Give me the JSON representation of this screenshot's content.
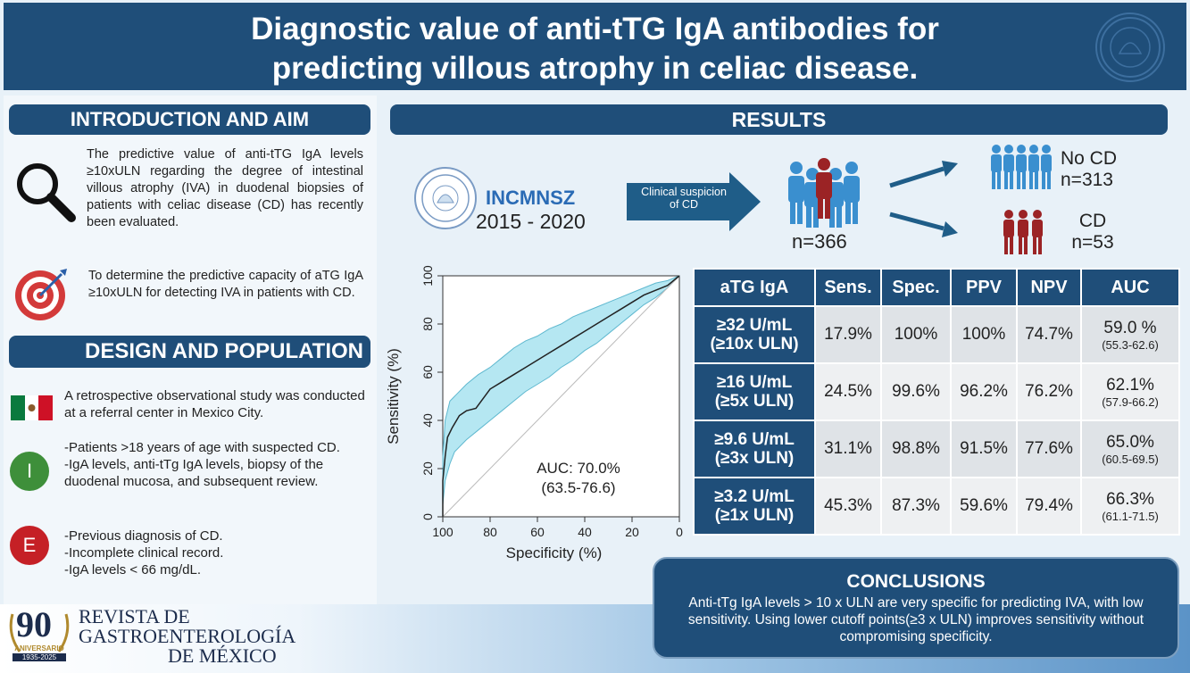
{
  "header": {
    "title_line1": "Diagnostic value of anti-tTG IgA antibodies for",
    "title_line2": "predicting villous atrophy in celiac disease.",
    "logo_icon": "university-seal-icon"
  },
  "intro": {
    "heading": "INTRODUCTION AND AIM",
    "text1": "The predictive value of anti-tTG IgA levels ≥10xULN regarding the degree of intestinal villous atrophy (IVA) in duodenal biopsies of patients with celiac disease (CD) has recently been evaluated.",
    "text2": "To determine the predictive capacity of aTG IgA ≥10xULN for detecting IVA in patients with CD."
  },
  "design": {
    "heading": "DESIGN AND POPULATION",
    "text1": "A retrospective observational study was conducted at a referral center in Mexico City.",
    "inclusion_letter": "I",
    "inclusion_line1": "-Patients >18 years of age with suspected CD.",
    "inclusion_line2": "-IgA levels, anti-tTg IgA levels, biopsy of the duodenal mucosa, and subsequent review.",
    "exclusion_letter": "E",
    "exclusion_line1": "-Previous diagnosis of CD.",
    "exclusion_line2": "-Incomplete clinical record.",
    "exclusion_line3": "-IgA levels < 66 mg/dL."
  },
  "results": {
    "heading": "RESULTS",
    "institution": "INCMNSZ",
    "years": "2015 - 2020",
    "arrow_label": "Clinical suspicion of CD",
    "total": "n=366",
    "no_cd_label": "No CD",
    "no_cd_n": "n=313",
    "cd_label": "CD",
    "cd_n": "n=53"
  },
  "chart_data": {
    "type": "line",
    "xlabel": "Specificity (%)",
    "ylabel": "Sensitivity (%)",
    "xlim": [
      100,
      0
    ],
    "ylim": [
      0,
      100
    ],
    "x_ticks": [
      100,
      80,
      60,
      40,
      20,
      0
    ],
    "y_ticks": [
      0,
      20,
      40,
      60,
      80,
      100
    ],
    "annotation_line1": "AUC: 70.0%",
    "annotation_line2": "(63.5-76.6)",
    "roc": [
      [
        100,
        0
      ],
      [
        100,
        15
      ],
      [
        99,
        25
      ],
      [
        98,
        33
      ],
      [
        96,
        37
      ],
      [
        93,
        42
      ],
      [
        90,
        44
      ],
      [
        86,
        45
      ],
      [
        83,
        49
      ],
      [
        80,
        53
      ],
      [
        75,
        56
      ],
      [
        70,
        59
      ],
      [
        65,
        62
      ],
      [
        60,
        65
      ],
      [
        55,
        68
      ],
      [
        50,
        71
      ],
      [
        45,
        74
      ],
      [
        40,
        77
      ],
      [
        35,
        80
      ],
      [
        30,
        83
      ],
      [
        25,
        86
      ],
      [
        20,
        89
      ],
      [
        15,
        92
      ],
      [
        10,
        94
      ],
      [
        5,
        96
      ],
      [
        0,
        100
      ]
    ],
    "ci_upper": [
      [
        100,
        0
      ],
      [
        100,
        25
      ],
      [
        99,
        40
      ],
      [
        97,
        48
      ],
      [
        94,
        51
      ],
      [
        90,
        55
      ],
      [
        85,
        59
      ],
      [
        80,
        62
      ],
      [
        75,
        66
      ],
      [
        70,
        70
      ],
      [
        65,
        73
      ],
      [
        60,
        75
      ],
      [
        55,
        78
      ],
      [
        50,
        80
      ],
      [
        45,
        83
      ],
      [
        40,
        85
      ],
      [
        35,
        87
      ],
      [
        30,
        89
      ],
      [
        25,
        91
      ],
      [
        20,
        93
      ],
      [
        15,
        95
      ],
      [
        10,
        97
      ],
      [
        5,
        98
      ],
      [
        0,
        100
      ]
    ],
    "ci_lower": [
      [
        100,
        0
      ],
      [
        100,
        5
      ],
      [
        99,
        15
      ],
      [
        97,
        22
      ],
      [
        95,
        27
      ],
      [
        90,
        32
      ],
      [
        85,
        36
      ],
      [
        80,
        40
      ],
      [
        75,
        44
      ],
      [
        70,
        48
      ],
      [
        65,
        52
      ],
      [
        60,
        55
      ],
      [
        55,
        58
      ],
      [
        50,
        62
      ],
      [
        45,
        65
      ],
      [
        40,
        69
      ],
      [
        35,
        72
      ],
      [
        30,
        76
      ],
      [
        25,
        80
      ],
      [
        20,
        84
      ],
      [
        15,
        88
      ],
      [
        10,
        91
      ],
      [
        5,
        95
      ],
      [
        0,
        100
      ]
    ],
    "band_color": "#b5e7f2",
    "line_color": "#222222"
  },
  "table": {
    "headers": [
      "aTG IgA",
      "Sens.",
      "Spec.",
      "PPV",
      "NPV",
      "AUC"
    ],
    "rows": [
      {
        "cut1": "≥32 U/mL",
        "cut2": "(≥10x ULN)",
        "sens": "17.9%",
        "spec": "100%",
        "ppv": "100%",
        "npv": "74.7%",
        "auc": "59.0 %",
        "auc_ci": "(55.3-62.6)"
      },
      {
        "cut1": "≥16 U/mL",
        "cut2": "(≥5x ULN)",
        "sens": "24.5%",
        "spec": "99.6%",
        "ppv": "96.2%",
        "npv": "76.2%",
        "auc": "62.1%",
        "auc_ci": "(57.9-66.2)"
      },
      {
        "cut1": "≥9.6 U/mL",
        "cut2": "(≥3x ULN)",
        "sens": "31.1%",
        "spec": "98.8%",
        "ppv": "91.5%",
        "npv": "77.6%",
        "auc": "65.0%",
        "auc_ci": "(60.5-69.5)"
      },
      {
        "cut1": "≥3.2 U/mL",
        "cut2": "(≥1x ULN)",
        "sens": "45.3%",
        "spec": "87.3%",
        "ppv": "59.6%",
        "npv": "79.4%",
        "auc": "66.3%",
        "auc_ci": "(61.1-71.5)"
      }
    ]
  },
  "conclusions": {
    "heading": "CONCLUSIONS",
    "text": "Anti-tTg IgA levels > 10 x ULN are very specific for predicting IVA, with low sensitivity. Using lower cutoff points(≥3 x ULN) improves sensitivity without compromising specificity."
  },
  "footer": {
    "badge_number": "90",
    "badge_text": "ANIVERSARIO",
    "badge_years": "1935-2025",
    "journal_line1": "REVISTA DE",
    "journal_line2": "GASTROENTEROLOGÍA",
    "journal_line3": "DE MÉXICO"
  },
  "colors": {
    "navy": "#1f4e79",
    "arrow_blue": "#1f5d88",
    "person_blue": "#3a8fcf",
    "person_red": "#9b2325",
    "target_red": "#d33a3a",
    "inclusion_green": "#3e8f3a",
    "exclusion_red": "#c52026"
  }
}
